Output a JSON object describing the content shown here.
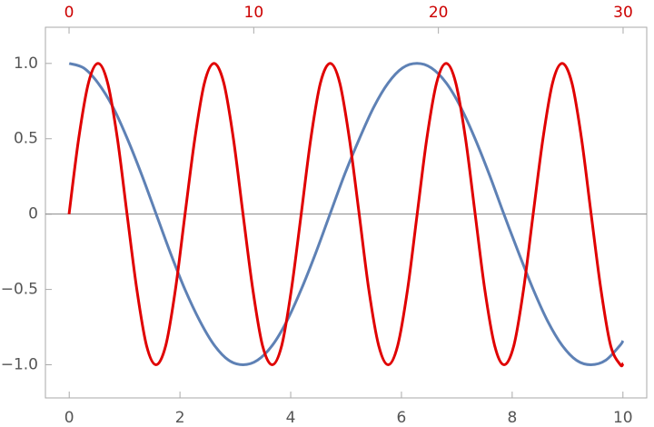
{
  "chart_data": {
    "type": "line",
    "xlim": [
      -0.43,
      10.43
    ],
    "x2lim": [
      -1.28,
      31.28
    ],
    "ylim": [
      -1.22,
      1.24
    ],
    "xticks": [
      0,
      2,
      4,
      6,
      8,
      10
    ],
    "x2ticks": [
      0,
      10,
      20,
      30
    ],
    "x2tick_color": "#cc0000",
    "yticks": [
      {
        "value": 1,
        "label": "1.0"
      },
      {
        "value": 0.5,
        "label": "0.5"
      },
      0,
      {
        "value": -0.5,
        "label": "−0.5"
      },
      {
        "value": -1,
        "label": "−1.0"
      }
    ],
    "zero_line": true,
    "series": [
      {
        "color": "#5e81b5",
        "x": [
          0,
          0.26,
          0.52,
          0.79,
          1.05,
          1.31,
          1.57,
          1.83,
          2.09,
          2.36,
          2.62,
          2.88,
          3.14,
          3.4,
          3.67,
          3.93,
          4.19,
          4.45,
          4.71,
          4.97,
          5.24,
          5.5,
          5.76,
          6.02,
          6.28,
          6.54,
          6.81,
          7.07,
          7.33,
          7.59,
          7.85,
          8.12,
          8.38,
          8.64,
          8.9,
          9.16,
          9.42,
          9.69,
          9.95,
          10
        ],
        "values": [
          1,
          0.97,
          0.87,
          0.71,
          0.5,
          0.26,
          0,
          -0.26,
          -0.5,
          -0.71,
          -0.87,
          -0.97,
          -1,
          -0.97,
          -0.87,
          -0.71,
          -0.5,
          -0.26,
          0,
          0.26,
          0.5,
          0.71,
          0.87,
          0.97,
          1,
          0.97,
          0.87,
          0.71,
          0.5,
          0.26,
          0,
          -0.26,
          -0.5,
          -0.71,
          -0.87,
          -0.97,
          -1,
          -0.97,
          -0.87,
          -0.84
        ]
      },
      {
        "color": "#e00000",
        "axis": "x2",
        "x": [
          0,
          0.52,
          1.05,
          1.57,
          2.09,
          2.62,
          3.14,
          3.67,
          4.19,
          4.71,
          5.24,
          5.76,
          6.28,
          6.81,
          7.33,
          7.85,
          8.38,
          8.9,
          9.42,
          9.95,
          10.47,
          11.0,
          11.52,
          12.04,
          12.57,
          13.09,
          13.61,
          14.14,
          14.66,
          15.18,
          15.71,
          16.23,
          16.76,
          17.28,
          17.8,
          18.33,
          18.85,
          19.37,
          19.9,
          20.42,
          20.94,
          21.47,
          21.99,
          22.51,
          23.04,
          23.56,
          24.09,
          24.61,
          25.13,
          25.66,
          26.18,
          26.7,
          27.23,
          27.75,
          28.27,
          28.8,
          29.32,
          29.85,
          30
        ],
        "values": [
          0,
          0.5,
          0.87,
          1,
          0.87,
          0.5,
          0,
          -0.5,
          -0.87,
          -1,
          -0.87,
          -0.5,
          0,
          0.5,
          0.87,
          1,
          0.87,
          0.5,
          0,
          -0.5,
          -0.87,
          -1,
          -0.87,
          -0.5,
          0,
          0.5,
          0.87,
          1,
          0.87,
          0.5,
          0,
          -0.5,
          -0.87,
          -1,
          -0.87,
          -0.5,
          0,
          0.5,
          0.87,
          1,
          0.87,
          0.5,
          0,
          -0.5,
          -0.87,
          -1,
          -0.87,
          -0.5,
          0,
          0.5,
          0.87,
          1,
          0.87,
          0.5,
          0,
          -0.5,
          -0.87,
          -1,
          -0.99
        ]
      }
    ]
  }
}
